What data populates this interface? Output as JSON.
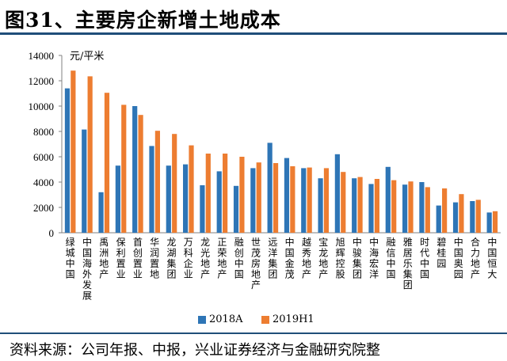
{
  "header": {
    "title": "图31、主要房企新增土地成本"
  },
  "footer": {
    "source": "资料来源：公司年报、中报，兴业证券经济与金融研究院整"
  },
  "colors": {
    "series_2018A": "#2e75b6",
    "series_2019H1": "#ed7d31",
    "frame": "#1f4e79"
  },
  "chart_data": {
    "type": "bar",
    "title": "主要房企新增土地成本",
    "unit": "元/平米",
    "ylabel": "元/平米",
    "xlabel": "",
    "ylim": [
      0,
      14000
    ],
    "yticks": [
      0,
      2000,
      4000,
      6000,
      8000,
      10000,
      12000,
      14000
    ],
    "grid": false,
    "legend_position": "bottom",
    "categories": [
      "绿城中国",
      "中国海外发展",
      "禹洲地产",
      "保利置业",
      "首创置业",
      "华润置地",
      "龙湖集团",
      "万科企业",
      "龙光地产",
      "正荣地产",
      "融创中国",
      "世茂房地产",
      "远洋集团",
      "中国金茂",
      "越秀地产",
      "宝龙地产",
      "旭辉控股",
      "中骏集团",
      "中海宏洋",
      "融信中国",
      "雅居乐集团",
      "时代中国",
      "碧桂园",
      "中国奥园",
      "合力地产",
      "中国恒大"
    ],
    "series": [
      {
        "name": "2018A",
        "values": [
          11400,
          8150,
          3200,
          5300,
          10000,
          6850,
          5300,
          5400,
          3750,
          4850,
          3700,
          5100,
          7100,
          5900,
          5100,
          4300,
          6200,
          4300,
          3850,
          5200,
          3800,
          4000,
          2150,
          2400,
          2500,
          1600
        ]
      },
      {
        "name": "2019H1",
        "values": [
          12800,
          12350,
          11050,
          10100,
          9300,
          8050,
          7800,
          6900,
          6250,
          6250,
          6000,
          5550,
          5500,
          5250,
          5150,
          5100,
          4800,
          4400,
          4250,
          4150,
          4050,
          3600,
          3500,
          3050,
          2600,
          1700
        ]
      }
    ]
  }
}
